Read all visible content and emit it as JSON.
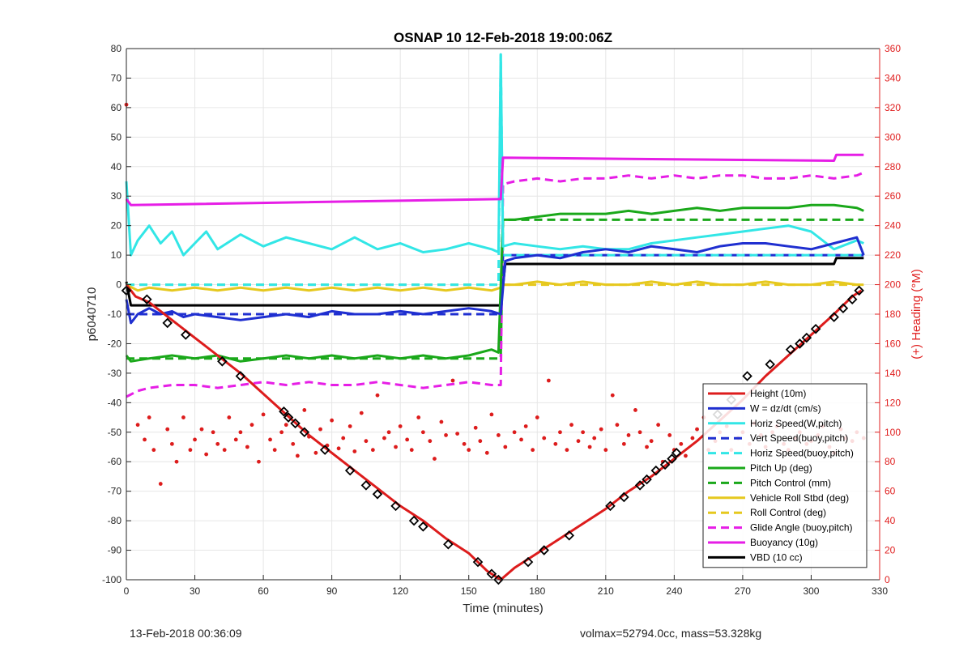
{
  "chart_data": {
    "type": "line",
    "title": "OSNAP 10 12-Feb-2018 19:00:06Z",
    "xlabel": "Time (minutes)",
    "ylabel": "p6040710",
    "ylabel_right": "(+) Heading (°M)",
    "xlim": [
      0,
      330
    ],
    "ylim": [
      -100,
      80
    ],
    "ylim_right": [
      0,
      360
    ],
    "x_ticks": [
      "0",
      "30",
      "60",
      "90",
      "120",
      "150",
      "180",
      "210",
      "240",
      "270",
      "300",
      "330"
    ],
    "y_ticks": [
      "80",
      "70",
      "60",
      "50",
      "40",
      "30",
      "20",
      "10",
      "0",
      "-10",
      "-20",
      "-30",
      "-40",
      "-50",
      "-60",
      "-70",
      "-80",
      "-90",
      "-100"
    ],
    "y_ticks_right": [
      "360",
      "340",
      "320",
      "300",
      "280",
      "260",
      "240",
      "220",
      "200",
      "180",
      "160",
      "140",
      "120",
      "100",
      "80",
      "60",
      "40",
      "20",
      "0"
    ],
    "grid": true,
    "legend_position": "bottom-right",
    "colors": {
      "height": "#dd1c1c",
      "w": "#1f2fd0",
      "horiz_speed": "#32e6e6",
      "vert_speed": "#1f2fd0",
      "horiz_speed_buoy": "#32e6e6",
      "pitch_up": "#1aa81a",
      "pitch_control": "#1aa81a",
      "roll": "#e6c81e",
      "roll_control": "#e6c81e",
      "glide_angle": "#e61ee6",
      "buoyancy": "#e61ee6",
      "vbd": "#000000",
      "heading": "#dd1c1c"
    },
    "series": [
      {
        "name": "Height (10m)",
        "style": "solid",
        "x": [
          0,
          4,
          10,
          20,
          30,
          40,
          50,
          60,
          70,
          80,
          90,
          100,
          110,
          120,
          130,
          140,
          150,
          158,
          164,
          170,
          180,
          190,
          200,
          210,
          220,
          230,
          240,
          250,
          260,
          270,
          280,
          290,
          300,
          310,
          318,
          322
        ],
        "values": [
          0,
          -4,
          -6,
          -12,
          -18,
          -24,
          -30,
          -37,
          -44,
          -51,
          -57,
          -63,
          -69,
          -75,
          -80,
          -86,
          -91,
          -97,
          -100,
          -96,
          -91,
          -86,
          -81,
          -76,
          -70,
          -65,
          -59,
          -53,
          -46,
          -39,
          -31,
          -24,
          -17,
          -10,
          -4,
          -2
        ]
      },
      {
        "name": "W = dz/dt (cm/s)",
        "style": "solid",
        "x": [
          0,
          2,
          5,
          10,
          15,
          20,
          25,
          30,
          40,
          50,
          60,
          70,
          80,
          90,
          100,
          110,
          120,
          130,
          140,
          150,
          160,
          164,
          166,
          170,
          180,
          190,
          200,
          210,
          220,
          230,
          240,
          250,
          260,
          270,
          280,
          290,
          300,
          310,
          320,
          323
        ],
        "values": [
          -5,
          -13,
          -10,
          -8,
          -10,
          -9,
          -11,
          -10,
          -11,
          -12,
          -11,
          -10,
          -11,
          -9,
          -10,
          -10,
          -9,
          -10,
          -9,
          -8,
          -9,
          -10,
          8,
          9,
          10,
          9,
          11,
          12,
          11,
          13,
          12,
          11,
          13,
          14,
          14,
          13,
          12,
          14,
          16,
          10
        ]
      },
      {
        "name": "Horiz Speed(W,pitch)",
        "style": "solid",
        "x": [
          0,
          2,
          5,
          10,
          15,
          20,
          25,
          30,
          35,
          40,
          50,
          60,
          70,
          80,
          90,
          100,
          110,
          120,
          130,
          140,
          150,
          160,
          163,
          164,
          165,
          170,
          180,
          190,
          200,
          210,
          220,
          230,
          240,
          250,
          260,
          270,
          280,
          290,
          300,
          310,
          320,
          323
        ],
        "values": [
          35,
          10,
          15,
          20,
          14,
          18,
          10,
          14,
          18,
          12,
          17,
          13,
          16,
          14,
          12,
          16,
          12,
          14,
          11,
          12,
          14,
          12,
          11,
          78,
          13,
          14,
          13,
          12,
          13,
          12,
          12,
          14,
          15,
          16,
          17,
          18,
          19,
          20,
          18,
          12,
          15,
          14
        ]
      },
      {
        "name": "Vert Speed(buoy,pitch)",
        "style": "dashed",
        "x": [
          0,
          164,
          165,
          323
        ],
        "values": [
          -10,
          -10,
          10,
          10
        ]
      },
      {
        "name": "Horiz Speed(buoy,pitch)",
        "style": "dashed",
        "x": [
          0,
          163,
          164,
          165,
          323
        ],
        "values": [
          0,
          0,
          78,
          10,
          10
        ]
      },
      {
        "name": "Pitch Up (deg)",
        "style": "solid",
        "x": [
          0,
          2,
          10,
          20,
          30,
          40,
          50,
          60,
          70,
          80,
          90,
          100,
          110,
          120,
          130,
          140,
          150,
          160,
          163,
          165,
          170,
          180,
          190,
          200,
          210,
          220,
          230,
          240,
          250,
          260,
          270,
          280,
          290,
          300,
          310,
          320,
          323
        ],
        "values": [
          -24,
          -26,
          -25,
          -24,
          -25,
          -24,
          -26,
          -25,
          -24,
          -25,
          -24,
          -25,
          -24,
          -25,
          -24,
          -25,
          -24,
          -22,
          -23,
          22,
          22,
          23,
          24,
          24,
          24,
          25,
          24,
          25,
          26,
          25,
          26,
          26,
          26,
          27,
          27,
          26,
          25
        ]
      },
      {
        "name": "Pitch Control (mm)",
        "style": "dashed",
        "x": [
          0,
          164,
          165,
          323
        ],
        "values": [
          -25,
          -25,
          22,
          22
        ]
      },
      {
        "name": "Vehicle Roll Stbd (deg)",
        "style": "solid",
        "x": [
          0,
          5,
          10,
          20,
          30,
          40,
          50,
          60,
          70,
          80,
          90,
          100,
          110,
          120,
          130,
          140,
          150,
          160,
          164,
          165,
          170,
          180,
          190,
          200,
          210,
          220,
          230,
          240,
          250,
          260,
          270,
          280,
          290,
          300,
          310,
          320,
          323
        ],
        "values": [
          0,
          -2,
          -1,
          -2,
          -1,
          -2,
          -1,
          -2,
          -1,
          -2,
          -1,
          -2,
          -1,
          -2,
          -1,
          -2,
          -1,
          -2,
          -1,
          0,
          0,
          1,
          0,
          1,
          0,
          0,
          1,
          0,
          1,
          0,
          0,
          1,
          0,
          0,
          1,
          0,
          0
        ]
      },
      {
        "name": "Roll Control (deg)",
        "style": "dashed",
        "x": [
          0,
          164,
          165,
          323
        ],
        "values": [
          0,
          0,
          0,
          0
        ]
      },
      {
        "name": "Glide Angle (buoy,pitch)",
        "style": "dashed",
        "x": [
          0,
          5,
          10,
          20,
          30,
          40,
          50,
          60,
          70,
          80,
          90,
          100,
          110,
          120,
          130,
          140,
          150,
          160,
          164,
          165,
          170,
          180,
          190,
          200,
          210,
          220,
          230,
          240,
          250,
          260,
          270,
          280,
          290,
          300,
          310,
          320,
          323
        ],
        "values": [
          -38,
          -36,
          -35,
          -34,
          -34,
          -35,
          -34,
          -33,
          -34,
          -33,
          -34,
          -34,
          -33,
          -34,
          -35,
          -34,
          -33,
          -34,
          -34,
          34,
          35,
          36,
          35,
          36,
          36,
          37,
          36,
          37,
          36,
          37,
          37,
          36,
          36,
          37,
          36,
          37,
          38
        ]
      },
      {
        "name": "Buoyancy (10g)",
        "style": "solid",
        "x": [
          0,
          2,
          163,
          164,
          165,
          310,
          311,
          323
        ],
        "values": [
          29,
          27,
          29,
          29,
          43,
          42,
          44,
          44
        ]
      },
      {
        "name": "VBD (10 cc)",
        "style": "solid",
        "x": [
          0,
          2,
          163,
          164,
          166,
          310,
          311,
          323
        ],
        "values": [
          1,
          -7,
          -7,
          -7,
          7,
          7,
          9,
          9
        ]
      }
    ],
    "heading_points": {
      "name": "Heading",
      "axis": "right",
      "x": [
        0,
        5,
        8,
        10,
        12,
        15,
        18,
        20,
        22,
        25,
        28,
        30,
        33,
        35,
        38,
        40,
        43,
        45,
        48,
        50,
        53,
        55,
        58,
        60,
        63,
        65,
        68,
        70,
        73,
        75,
        78,
        80,
        83,
        85,
        88,
        90,
        93,
        95,
        98,
        100,
        103,
        105,
        108,
        110,
        113,
        115,
        118,
        120,
        123,
        125,
        128,
        130,
        133,
        135,
        138,
        140,
        143,
        145,
        148,
        150,
        153,
        155,
        158,
        160,
        163,
        166,
        170,
        173,
        175,
        178,
        180,
        183,
        185,
        188,
        190,
        193,
        195,
        198,
        200,
        203,
        205,
        208,
        210,
        213,
        215,
        218,
        220,
        223,
        225,
        228,
        230,
        233,
        235,
        238,
        240,
        243,
        245,
        248,
        250,
        253,
        255,
        258,
        260,
        263,
        265,
        268,
        270,
        273,
        275,
        278,
        280,
        283,
        285,
        288,
        290,
        293,
        295,
        298,
        300,
        303,
        305,
        308,
        310,
        313,
        315,
        318,
        320,
        323
      ],
      "values": [
        322,
        105,
        95,
        110,
        88,
        65,
        102,
        92,
        80,
        110,
        88,
        95,
        102,
        85,
        100,
        92,
        88,
        110,
        95,
        100,
        90,
        105,
        80,
        112,
        95,
        88,
        100,
        105,
        92,
        84,
        115,
        97,
        86,
        102,
        91,
        108,
        89,
        96,
        104,
        87,
        113,
        94,
        88,
        125,
        96,
        100,
        90,
        104,
        95,
        88,
        110,
        100,
        94,
        82,
        107,
        98,
        135,
        99,
        92,
        88,
        103,
        94,
        86,
        112,
        98,
        90,
        100,
        95,
        104,
        88,
        110,
        96,
        135,
        92,
        100,
        88,
        105,
        94,
        100,
        90,
        96,
        102,
        88,
        125,
        105,
        92,
        98,
        115,
        100,
        90,
        94,
        105,
        80,
        98,
        88,
        92,
        84,
        96,
        102,
        110,
        88,
        94,
        100,
        104,
        88,
        96,
        100,
        92,
        106,
        98,
        90,
        100,
        104,
        92,
        88,
        96,
        100,
        92,
        94,
        98,
        104,
        90,
        86,
        102,
        96,
        94,
        100,
        96
      ]
    },
    "marker_points": {
      "name": "Height markers",
      "x": [
        0,
        9,
        18,
        26,
        42,
        50,
        69,
        71,
        74,
        78,
        87,
        98,
        105,
        110,
        118,
        126,
        130,
        141,
        154,
        160,
        163,
        176,
        183,
        194,
        212,
        218,
        225,
        228,
        232,
        236,
        239,
        241,
        259,
        265,
        272,
        282,
        291,
        295,
        298,
        302,
        310,
        314,
        318,
        321
      ],
      "values": [
        -2,
        -5,
        -13,
        -17,
        -26,
        -31,
        -43,
        -45,
        -47,
        -50,
        -56,
        -63,
        -68,
        -71,
        -75,
        -80,
        -82,
        -88,
        -94,
        -98,
        -100,
        -94,
        -90,
        -85,
        -75,
        -72,
        -68,
        -66,
        -63,
        -61,
        -59,
        -57,
        -44,
        -39,
        -31,
        -27,
        -22,
        -20,
        -18,
        -15,
        -11,
        -8,
        -5,
        -2
      ]
    }
  },
  "legend": [
    {
      "label": "Height (10m)",
      "color": "#dd1c1c",
      "dash": false
    },
    {
      "label": "W = dz/dt (cm/s)",
      "color": "#1f2fd0",
      "dash": false
    },
    {
      "label": "Horiz Speed(W,pitch)",
      "color": "#32e6e6",
      "dash": false
    },
    {
      "label": "Vert Speed(buoy,pitch)",
      "color": "#1f2fd0",
      "dash": true
    },
    {
      "label": "Horiz Speed(buoy,pitch)",
      "color": "#32e6e6",
      "dash": true
    },
    {
      "label": "Pitch Up (deg)",
      "color": "#1aa81a",
      "dash": false
    },
    {
      "label": "Pitch Control (mm)",
      "color": "#1aa81a",
      "dash": true
    },
    {
      "label": "Vehicle Roll Stbd (deg)",
      "color": "#e6c81e",
      "dash": false
    },
    {
      "label": "Roll Control (deg)",
      "color": "#e6c81e",
      "dash": true
    },
    {
      "label": "Glide Angle (buoy,pitch)",
      "color": "#e61ee6",
      "dash": true
    },
    {
      "label": "Buoyancy (10g)",
      "color": "#e61ee6",
      "dash": false
    },
    {
      "label": "VBD (10 cc)",
      "color": "#000000",
      "dash": false
    }
  ],
  "footer": {
    "left": "13-Feb-2018 00:36:09",
    "right": "volmax=52794.0cc, mass=53.328kg"
  }
}
